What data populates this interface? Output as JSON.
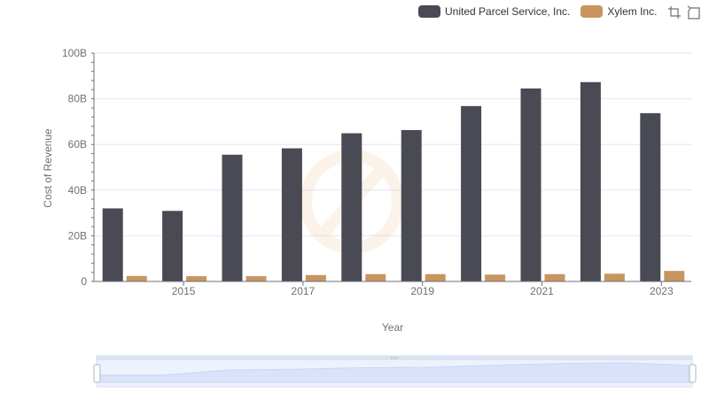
{
  "legend": {
    "items": [
      {
        "label": "United Parcel Service, Inc.",
        "color": "#4a4a55"
      },
      {
        "label": "Xylem Inc.",
        "color": "#c8955f"
      }
    ]
  },
  "toolbox": {
    "icons": [
      "zoom-icon",
      "restore-icon"
    ]
  },
  "chart_data": {
    "type": "bar",
    "categories": [
      "2014",
      "2015",
      "2016",
      "2017",
      "2018",
      "2019",
      "2020",
      "2021",
      "2022",
      "2023"
    ],
    "x_tick_labels": [
      "2015",
      "2017",
      "2019",
      "2021",
      "2023"
    ],
    "xlabel": "Year",
    "ylabel": "Cost of Revenue",
    "ylim": [
      0,
      100000000000
    ],
    "y_tick_labels": [
      "0",
      "20B",
      "40B",
      "60B",
      "80B",
      "100B"
    ],
    "grid": true,
    "legend_position": "top-right",
    "series": [
      {
        "name": "United Parcel Service, Inc.",
        "color": "#4a4a55",
        "values": [
          32000000000,
          30900000000,
          55500000000,
          58300000000,
          64900000000,
          66300000000,
          76800000000,
          84500000000,
          87300000000,
          73700000000
        ]
      },
      {
        "name": "Xylem Inc.",
        "color": "#c8955f",
        "values": [
          2400000000,
          2300000000,
          2300000000,
          2800000000,
          3200000000,
          3200000000,
          3000000000,
          3200000000,
          3400000000,
          4600000000
        ]
      }
    ]
  }
}
